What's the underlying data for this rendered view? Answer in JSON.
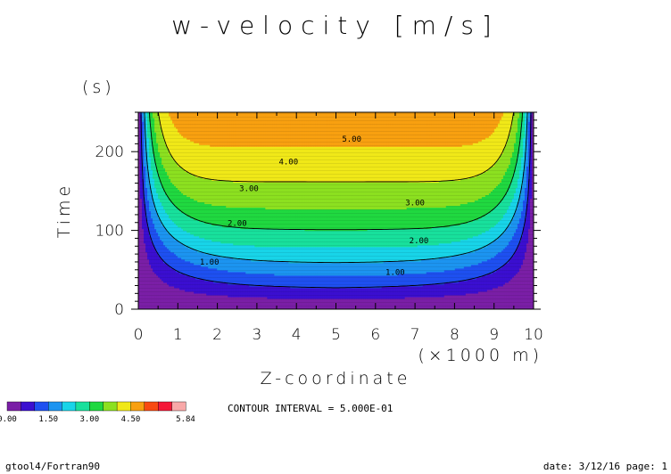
{
  "chart_data": {
    "type": "heatmap",
    "title": "w-velocity [m/s]",
    "xlabel": "Z-coordinate",
    "x_unit": "(×1000 m)",
    "ylabel": "Time",
    "y_unit": "(s)",
    "xlim": [
      0,
      10
    ],
    "ylim": [
      0,
      250
    ],
    "x_ticks": [
      "0",
      "1",
      "2",
      "3",
      "4",
      "5",
      "6",
      "7",
      "8",
      "9",
      "10"
    ],
    "y_ticks": [
      "0",
      "100",
      "200"
    ],
    "contour_interval_text": "CONTOUR INTERVAL = 5.000E-01",
    "contour_labels": [
      {
        "text": "5.00",
        "x": 5.4,
        "y": 216
      },
      {
        "text": "4.00",
        "x": 3.8,
        "y": 187
      },
      {
        "text": "3.00",
        "x": 2.8,
        "y": 153
      },
      {
        "text": "3.00",
        "x": 7.0,
        "y": 135
      },
      {
        "text": "2.00",
        "x": 2.5,
        "y": 109
      },
      {
        "text": "2.00",
        "x": 7.1,
        "y": 87
      },
      {
        "text": "1.00",
        "x": 1.8,
        "y": 60
      },
      {
        "text": "1.00",
        "x": 6.5,
        "y": 47
      }
    ],
    "levels": [
      0.0,
      0.5,
      1.0,
      1.5,
      2.0,
      2.5,
      3.0,
      3.5,
      4.0,
      4.5,
      5.0,
      5.5,
      5.84
    ],
    "colorbar_labels": [
      "0.00",
      "1.50",
      "3.00",
      "4.50",
      "5.84"
    ],
    "colors": [
      "#7a1fa6",
      "#3b0fd0",
      "#1e50f0",
      "#1c94f0",
      "#18d4e8",
      "#18e09c",
      "#20d840",
      "#8ce020",
      "#f0e818",
      "#f8a010",
      "#f84a12",
      "#f41838",
      "#f8a8a8"
    ]
  },
  "footer": {
    "left": "gtool4/Fortran90",
    "right": "date: 3/12/16 page: 1"
  }
}
